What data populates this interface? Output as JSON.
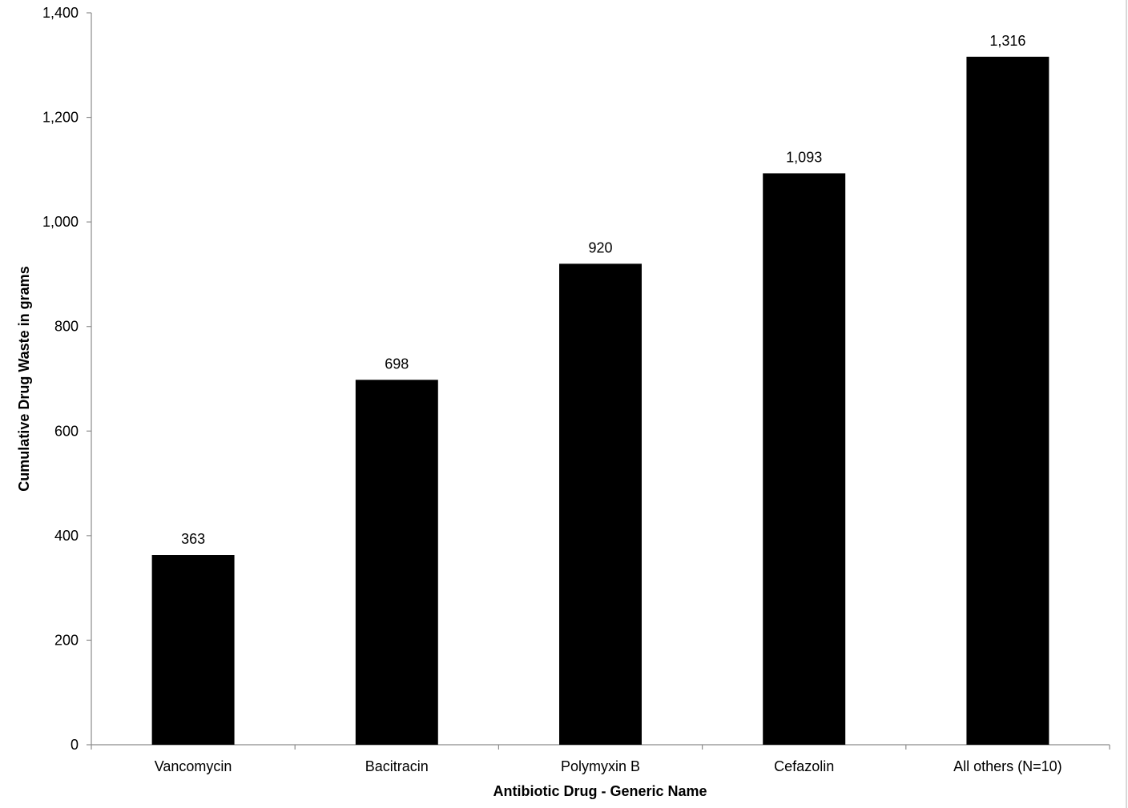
{
  "chart_data": {
    "type": "bar",
    "title": "",
    "xlabel": "Antibiotic Drug - Generic Name",
    "ylabel": "Cumulative Drug Waste in grams",
    "categories": [
      "Vancomycin",
      "Bacitracin",
      "Polymyxin B",
      "Cefazolin",
      "All others (N=10)"
    ],
    "values": [
      363,
      698,
      920,
      1093,
      1316
    ],
    "value_labels": [
      "363",
      "698",
      "920",
      "1,093",
      "1,316"
    ],
    "ylim": [
      0,
      1400
    ],
    "yticks": [
      0,
      200,
      400,
      600,
      800,
      1000,
      1200,
      1400
    ],
    "ytick_labels": [
      "0",
      "200",
      "400",
      "600",
      "800",
      "1,000",
      "1,200",
      "1,400"
    ],
    "grid": false,
    "legend": "none",
    "bar_color": "#000000"
  }
}
